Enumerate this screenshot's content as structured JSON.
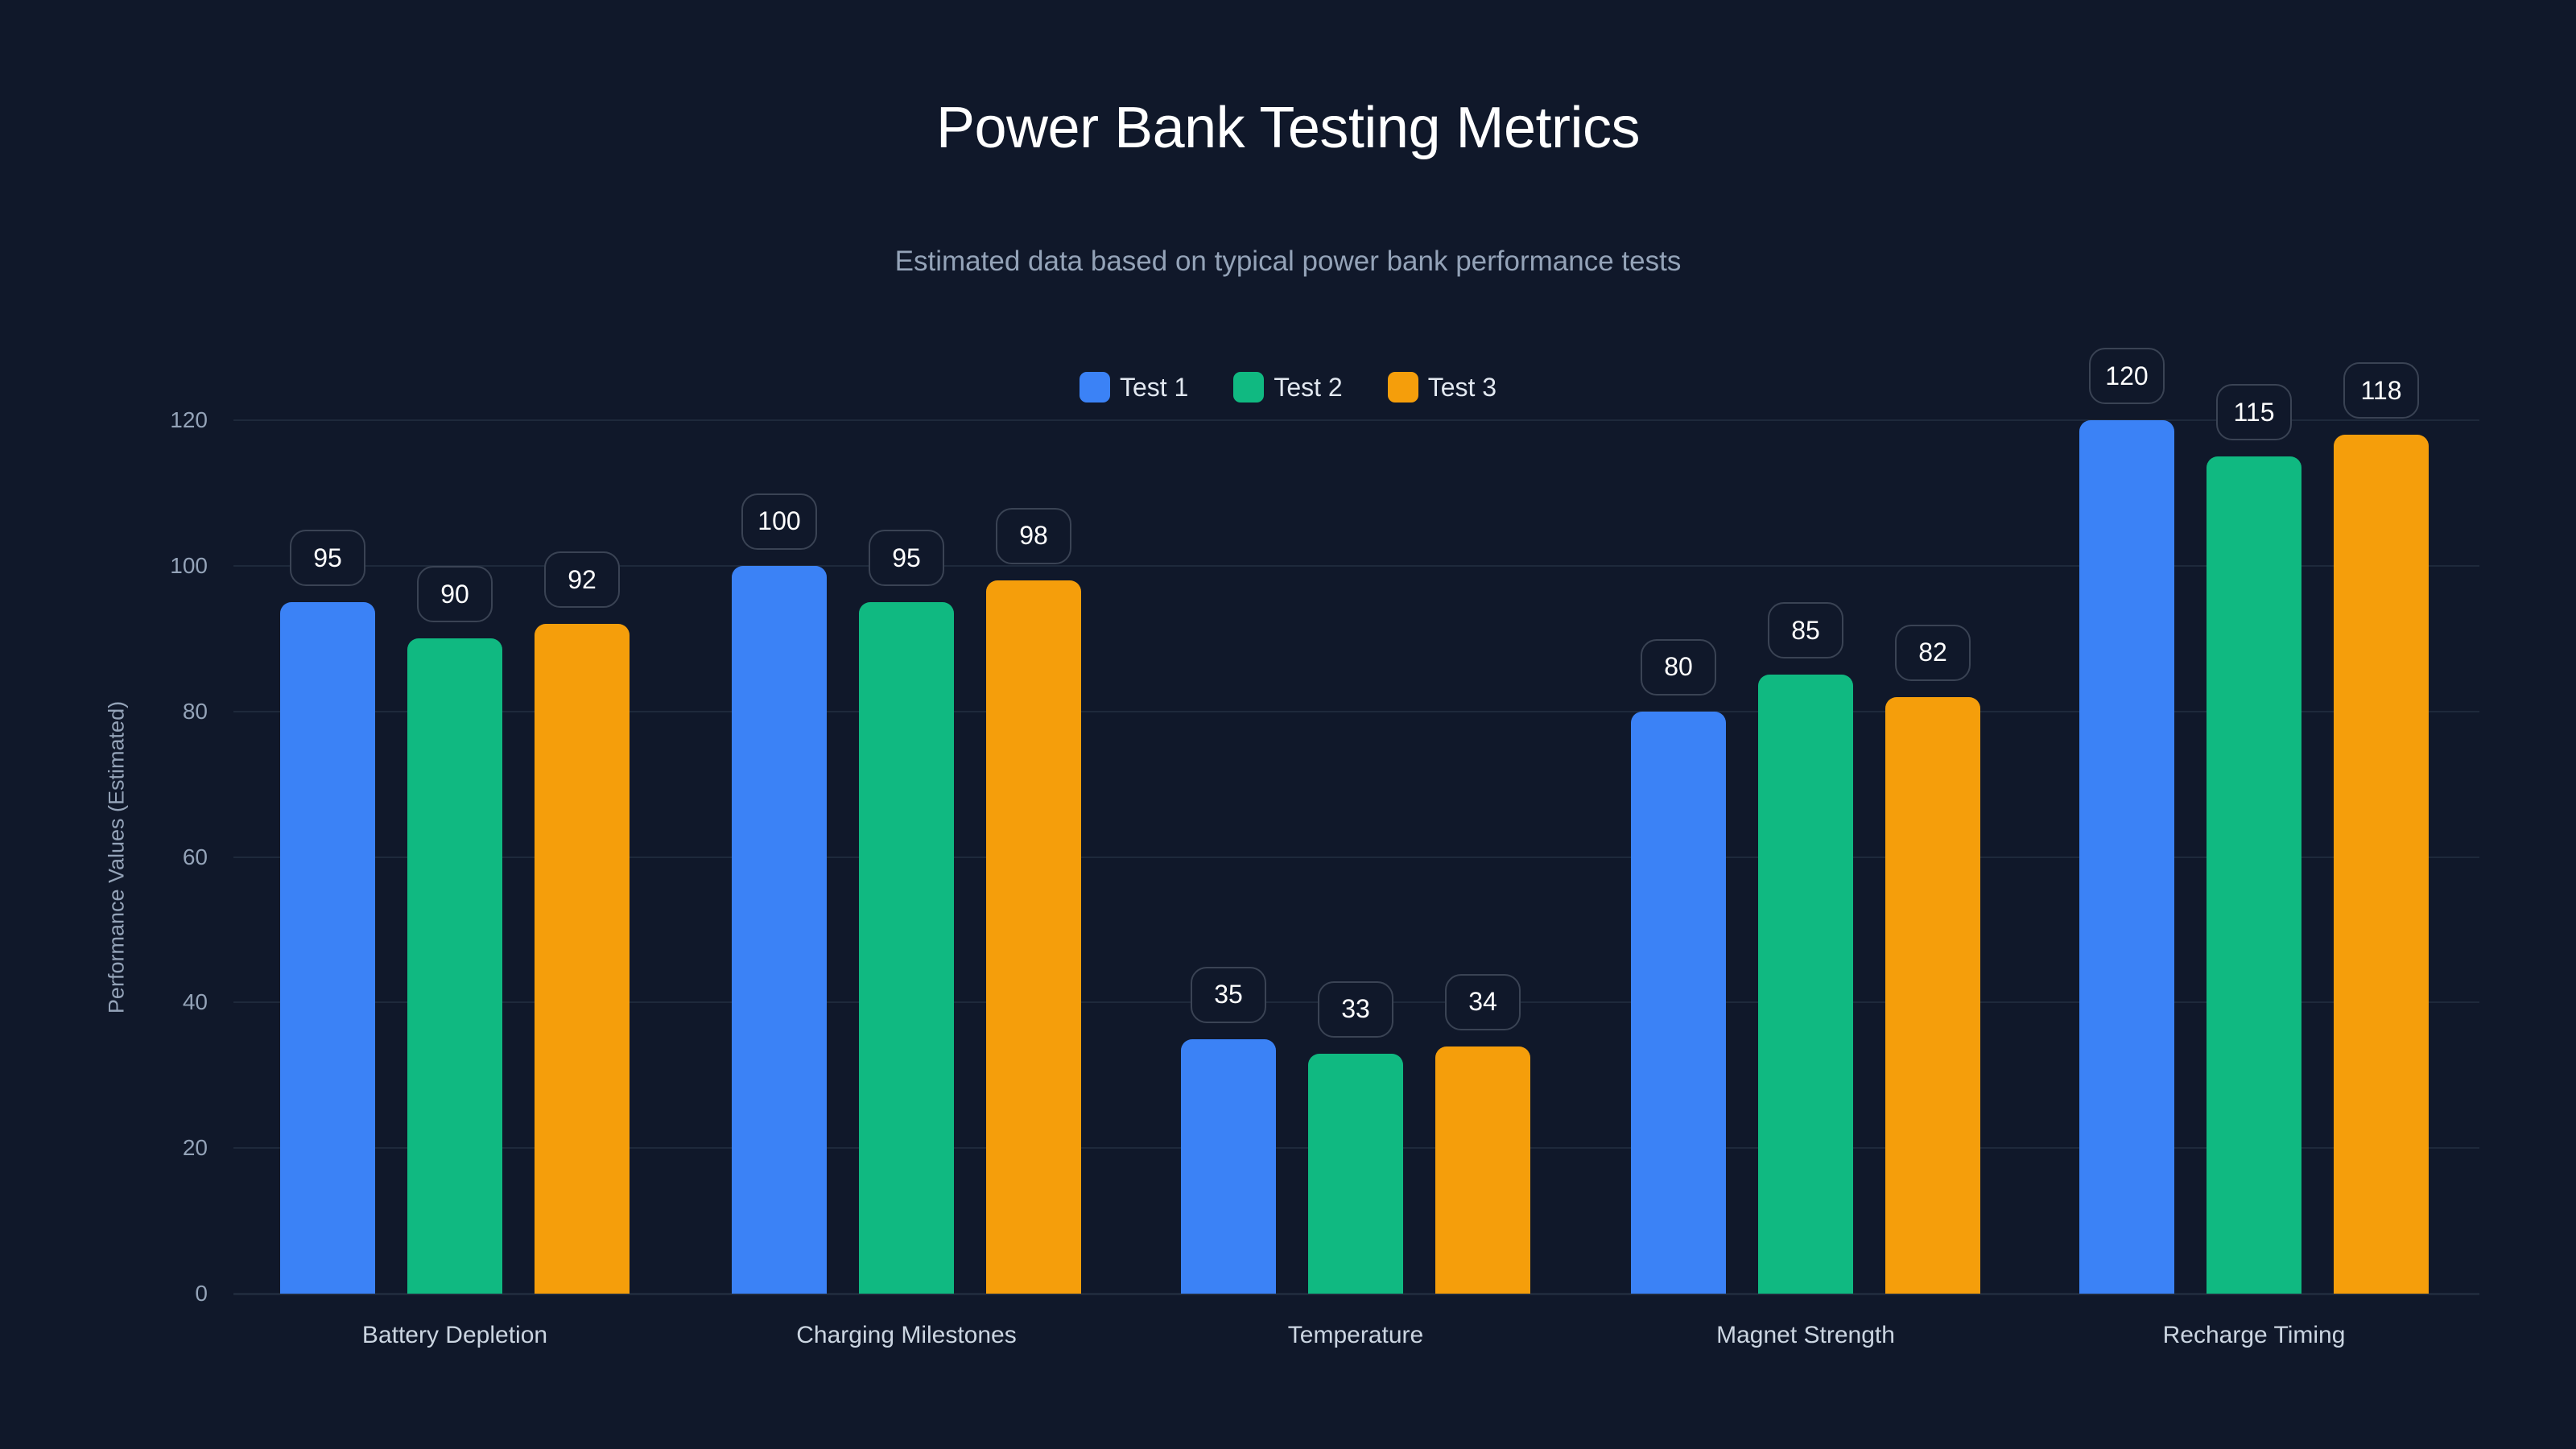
{
  "header": {
    "title": "Power Bank Testing Metrics",
    "subtitle": "Estimated data based on typical power bank performance tests"
  },
  "legend": [
    {
      "label": "Test 1",
      "color": "#3b82f6"
    },
    {
      "label": "Test 2",
      "color": "#10b981"
    },
    {
      "label": "Test 3",
      "color": "#f59e0b"
    }
  ],
  "axes": {
    "y_title": "Performance Values (Estimated)",
    "y_ticks": [
      "0",
      "20",
      "40",
      "60",
      "80",
      "100",
      "120"
    ]
  },
  "chart_data": {
    "type": "bar",
    "title": "Power Bank Testing Metrics",
    "subtitle": "Estimated data based on typical power bank performance tests",
    "xlabel": "",
    "ylabel": "Performance Values (Estimated)",
    "ylim": [
      0,
      120
    ],
    "yticks": [
      0,
      20,
      40,
      60,
      80,
      100,
      120
    ],
    "grid": true,
    "legend_position": "top-center",
    "categories": [
      "Battery Depletion",
      "Charging Milestones",
      "Temperature",
      "Magnet Strength",
      "Recharge Timing"
    ],
    "series": [
      {
        "name": "Test 1",
        "color": "#3b82f6",
        "values": [
          95,
          100,
          35,
          80,
          120
        ]
      },
      {
        "name": "Test 2",
        "color": "#10b981",
        "values": [
          90,
          95,
          33,
          85,
          115
        ]
      },
      {
        "name": "Test 3",
        "color": "#f59e0b",
        "values": [
          92,
          98,
          34,
          82,
          118
        ]
      }
    ],
    "data_labels": true
  }
}
